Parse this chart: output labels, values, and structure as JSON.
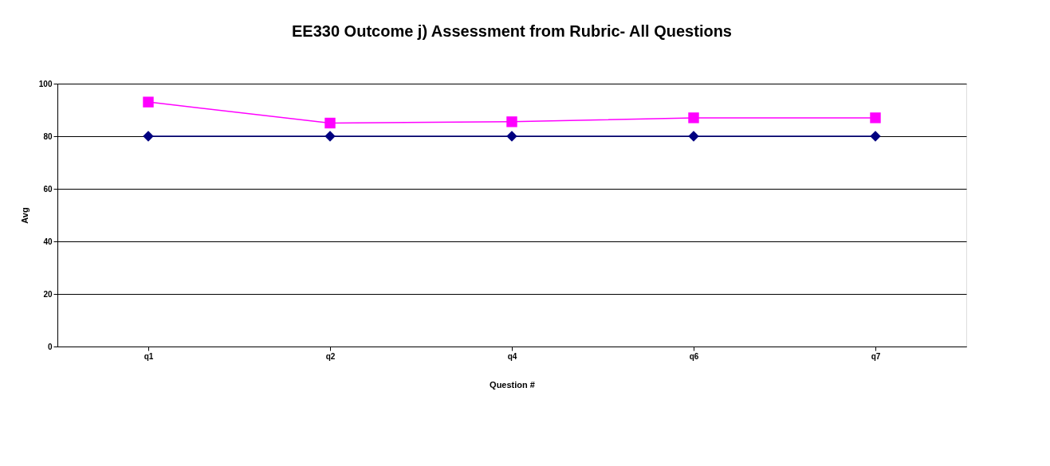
{
  "chart_data": {
    "type": "line",
    "title": "EE330 Outcome j) Assessment from Rubric- All Questions",
    "xlabel": "Question #",
    "ylabel": "Avg",
    "categories": [
      "q1",
      "q2",
      "q4",
      "q6",
      "q7"
    ],
    "series": [
      {
        "color": "#000080",
        "marker": "diamond",
        "values": [
          80,
          80,
          80,
          80,
          80
        ]
      },
      {
        "color": "#ff00ff",
        "marker": "square",
        "values": [
          93,
          85,
          85.5,
          87,
          87
        ]
      }
    ],
    "ylim": [
      0,
      100
    ],
    "yticks": [
      0,
      20,
      40,
      60,
      80,
      100
    ],
    "grid": "y"
  }
}
